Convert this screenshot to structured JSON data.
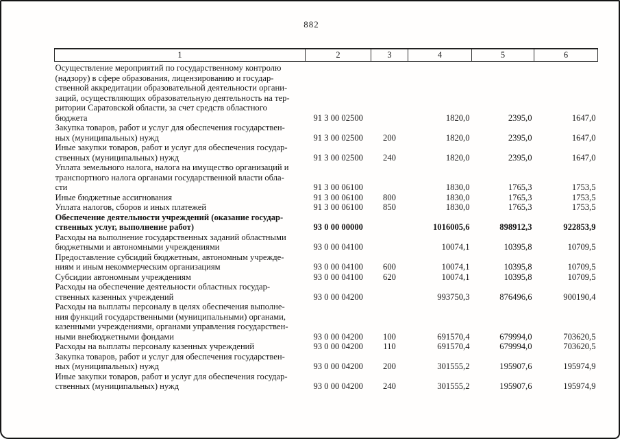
{
  "colors": {
    "ink": "#161616",
    "paper": "#fffefd"
  },
  "page": {
    "number": "882"
  },
  "table": {
    "headers": [
      "1",
      "2",
      "3",
      "4",
      "5",
      "6"
    ],
    "rows": [
      {
        "lines": [
          "Осуществление мероприятий по государственному контролю",
          "(надзору) в сфере образования, лицензированию и государ-",
          "ственной аккредитации образовательной деятельности органи-",
          "заций, осуществляющих образовательную деятельность на тер-",
          "ритории Саратовской области, за счет средств областного",
          "бюджета"
        ],
        "code": "91 3 00 02500",
        "type": "",
        "values": [
          "1820,0",
          "2395,0",
          "1647,0"
        ],
        "bold": false
      },
      {
        "lines": [
          "Закупка товаров, работ и услуг для обеспечения государствен-",
          "ных (муниципальных) нужд"
        ],
        "code": "91 3 00 02500",
        "type": "200",
        "values": [
          "1820,0",
          "2395,0",
          "1647,0"
        ],
        "bold": false
      },
      {
        "lines": [
          "Иные закупки товаров, работ и услуг для обеспечения государ-",
          "ственных (муниципальных) нужд"
        ],
        "code": "91 3 00 02500",
        "type": "240",
        "values": [
          "1820,0",
          "2395,0",
          "1647,0"
        ],
        "bold": false
      },
      {
        "lines": [
          "Уплата земельного налога, налога на имущество организаций и",
          "транспортного налога органами государственной власти обла-",
          "сти"
        ],
        "code": "91 3 00 06100",
        "type": "",
        "values": [
          "1830,0",
          "1765,3",
          "1753,5"
        ],
        "bold": false
      },
      {
        "lines": [
          "Иные бюджетные ассигнования"
        ],
        "code": "91 3 00 06100",
        "type": "800",
        "values": [
          "1830,0",
          "1765,3",
          "1753,5"
        ],
        "bold": false
      },
      {
        "lines": [
          "Уплата налогов, сборов и иных платежей"
        ],
        "code": "91 3 00 06100",
        "type": "850",
        "values": [
          "1830,0",
          "1765,3",
          "1753,5"
        ],
        "bold": false
      },
      {
        "lines": [
          "Обеспечение деятельности учреждений (оказание государ-",
          "ственных услуг, выполнение работ)"
        ],
        "code": "93 0 00 00000",
        "type": "",
        "values": [
          "1016005,6",
          "898912,3",
          "922853,9"
        ],
        "bold": true
      },
      {
        "lines": [
          "Расходы на выполнение государственных заданий областными",
          "бюджетными и автономными учреждениями"
        ],
        "code": "93 0 00 04100",
        "type": "",
        "values": [
          "10074,1",
          "10395,8",
          "10709,5"
        ],
        "bold": false
      },
      {
        "lines": [
          "Предоставление субсидий бюджетным, автономным учрежде-",
          "ниям и иным некоммерческим организациям"
        ],
        "code": "93 0 00 04100",
        "type": "600",
        "values": [
          "10074,1",
          "10395,8",
          "10709,5"
        ],
        "bold": false
      },
      {
        "lines": [
          "Субсидии автономным учреждениям"
        ],
        "code": "93 0 00 04100",
        "type": "620",
        "values": [
          "10074,1",
          "10395,8",
          "10709,5"
        ],
        "bold": false
      },
      {
        "lines": [
          "Расходы на обеспечение деятельности областных государ-",
          "ственных казенных учреждений"
        ],
        "code": "93 0 00 04200",
        "type": "",
        "values": [
          "993750,3",
          "876496,6",
          "900190,4"
        ],
        "bold": false
      },
      {
        "lines": [
          "Расходы на выплаты персоналу в целях обеспечения выполне-",
          "ния функций государственными (муниципальными) органами,",
          "казенными учреждениями, органами управления государствен-",
          "ными внебюджетными фондами"
        ],
        "code": "93 0 00 04200",
        "type": "100",
        "values": [
          "691570,4",
          "679994,0",
          "703620,5"
        ],
        "bold": false
      },
      {
        "lines": [
          "Расходы на выплаты персоналу казенных учреждений"
        ],
        "code": "93 0 00 04200",
        "type": "110",
        "values": [
          "691570,4",
          "679994,0",
          "703620,5"
        ],
        "bold": false
      },
      {
        "lines": [
          "Закупка товаров, работ и услуг для обеспечения государствен-",
          "ных (муниципальных) нужд"
        ],
        "code": "93 0 00 04200",
        "type": "200",
        "values": [
          "301555,2",
          "195907,6",
          "195974,9"
        ],
        "bold": false
      },
      {
        "lines": [
          "Иные закупки товаров, работ и услуг для обеспечения государ-",
          "ственных (муниципальных) нужд"
        ],
        "code": "93 0 00 04200",
        "type": "240",
        "values": [
          "301555,2",
          "195907,6",
          "195974,9"
        ],
        "bold": false
      }
    ]
  }
}
